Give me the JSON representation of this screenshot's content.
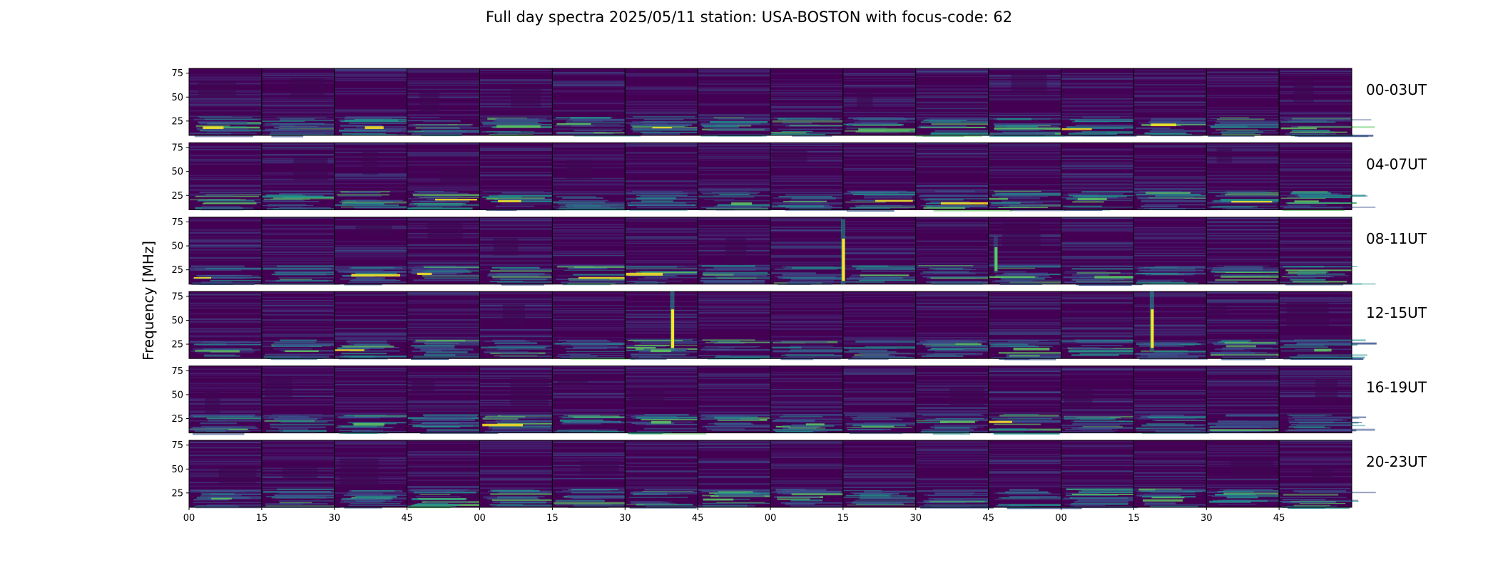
{
  "title": "Full day spectra 2025/05/11 station: USA-BOSTON with focus-code: 62",
  "chart_data": {
    "type": "heatmap",
    "title": "Full day spectra 2025/05/11 station: USA-BOSTON with focus-code: 62",
    "ylabel": "Frequency [MHz]",
    "xlabel": "",
    "colormap": "viridis",
    "ylim": [
      10,
      80
    ],
    "y_ticks": [
      "25",
      "50",
      "75"
    ],
    "y_tick_values": [
      25,
      50,
      75
    ],
    "x_tick_labels": [
      "00",
      "15",
      "30",
      "45",
      "00",
      "15",
      "30",
      "45",
      "00",
      "15",
      "30",
      "45",
      "00",
      "15",
      "30",
      "45"
    ],
    "panels_per_row": 16,
    "row_labels": [
      "00-03UT",
      "04-07UT",
      "08-11UT",
      "12-15UT",
      "16-19UT",
      "20-23UT"
    ],
    "bursts": [
      {
        "row": "08-11UT",
        "panel": 9,
        "position": 0.0,
        "freq_range": [
          10,
          78
        ],
        "intensity": 1.0
      },
      {
        "row": "08-11UT",
        "panel": 11,
        "position": 0.1,
        "freq_range": [
          22,
          60
        ],
        "intensity": 0.55
      },
      {
        "row": "12-15UT",
        "panel": 6,
        "position": 0.65,
        "freq_range": [
          18,
          80
        ],
        "intensity": 1.0
      },
      {
        "row": "12-15UT",
        "panel": 13,
        "position": 0.25,
        "freq_range": [
          18,
          80
        ],
        "intensity": 1.0
      }
    ],
    "colors": {
      "background": "#440154",
      "low": "#3b528b",
      "mid": "#21918c",
      "high": "#5ec962",
      "peak": "#fde725"
    }
  }
}
